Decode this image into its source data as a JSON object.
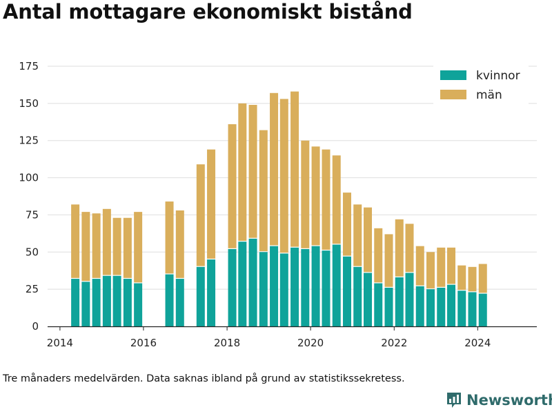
{
  "title": "Antal mottagare ekonomiskt bistånd",
  "footnote": "Tre månaders medelvärden. Data saknas ibland på grund av statistikssekretess.",
  "brand": {
    "name": "Newsworthy",
    "icon": "bar-chart-logo-icon",
    "color": "#2f6b6b"
  },
  "chart_data": {
    "type": "bar",
    "stacked": true,
    "x": [
      "2014-05",
      "2014-08",
      "2014-11",
      "2015-02",
      "2015-05",
      "2015-08",
      "2015-11",
      "2016-08",
      "2016-11",
      "2017-05",
      "2017-08",
      "2018-02",
      "2018-05",
      "2018-08",
      "2018-11",
      "2019-02",
      "2019-05",
      "2019-08",
      "2019-11",
      "2020-02",
      "2020-05",
      "2020-08",
      "2020-11",
      "2021-02",
      "2021-05",
      "2021-08",
      "2021-11",
      "2022-02",
      "2022-05",
      "2022-08",
      "2022-11",
      "2023-02",
      "2023-05",
      "2023-08",
      "2023-11",
      "2024-02"
    ],
    "series": [
      {
        "name": "kvinnor",
        "color": "#0fa39a",
        "values": [
          32,
          30,
          32,
          34,
          34,
          32,
          29,
          35,
          32,
          40,
          45,
          52,
          57,
          59,
          50,
          54,
          49,
          53,
          52,
          54,
          51,
          55,
          47,
          40,
          36,
          29,
          26,
          33,
          36,
          27,
          25,
          26,
          28,
          24,
          23,
          22
        ]
      },
      {
        "name": "män",
        "color": "#d9ae5b",
        "values": [
          50,
          47,
          44,
          45,
          39,
          41,
          48,
          49,
          46,
          69,
          74,
          84,
          93,
          90,
          82,
          103,
          104,
          105,
          73,
          67,
          68,
          60,
          43,
          42,
          44,
          37,
          36,
          39,
          33,
          27,
          25,
          27,
          25,
          17,
          17,
          20
        ]
      }
    ],
    "xticks": [
      2014,
      2016,
      2018,
      2020,
      2022,
      2024
    ],
    "yticks": [
      0,
      25,
      50,
      75,
      100,
      125,
      150,
      175
    ],
    "ylim": [
      0,
      175
    ],
    "xlim": [
      "2013-09-15",
      "2025-06-01"
    ],
    "grid": true,
    "legend": "top-right"
  }
}
